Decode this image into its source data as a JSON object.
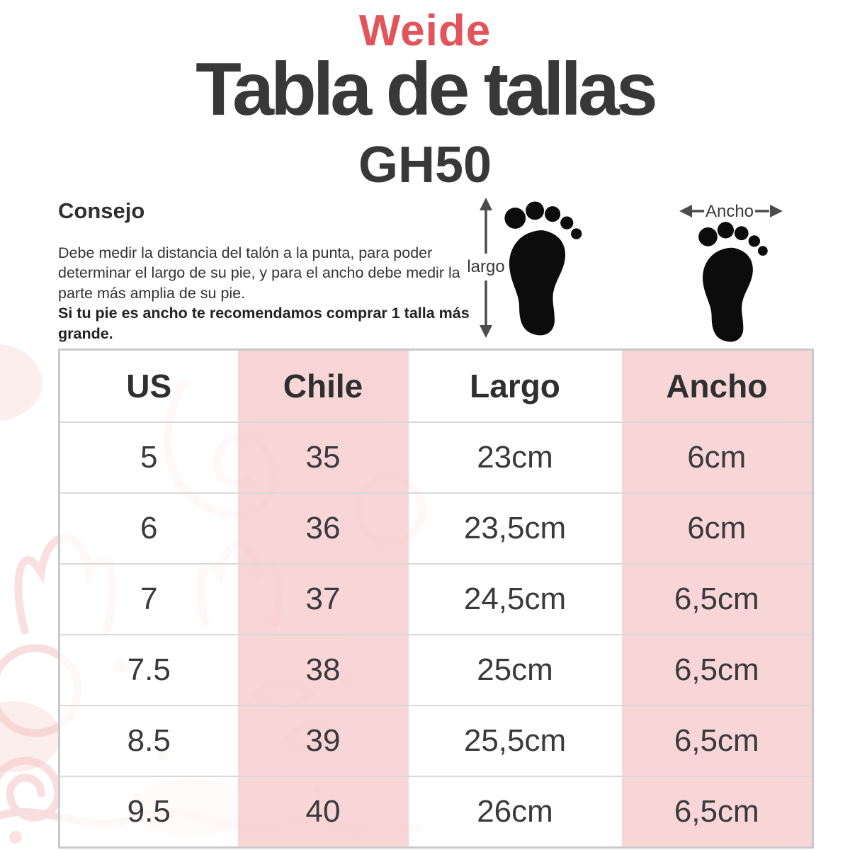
{
  "brand": {
    "logo_text": "Weide",
    "logo_color": "#e2535a"
  },
  "header": {
    "title": "Tabla de tallas",
    "model": "GH50"
  },
  "consejo": {
    "heading": "Consejo",
    "body": "Debe medir la distancia del talón a la punta, para poder determinar el largo de su pie, y para el ancho debe medir la parte más amplia de su pie.",
    "bold_note": "Si tu pie es ancho te recomendamos comprar 1 talla más grande."
  },
  "diagram": {
    "length_label": "largo",
    "width_label": "Ancho"
  },
  "size_table": {
    "columns": [
      "US",
      "Chile",
      "Largo",
      "Ancho"
    ],
    "rows": [
      [
        "5",
        "35",
        "23cm",
        "6cm"
      ],
      [
        "6",
        "36",
        "23,5cm",
        "6cm"
      ],
      [
        "7",
        "37",
        "24,5cm",
        "6,5cm"
      ],
      [
        "7.5",
        "38",
        "25cm",
        "6,5cm"
      ],
      [
        "8.5",
        "39",
        "25,5cm",
        "6,5cm"
      ],
      [
        "9.5",
        "40",
        "26cm",
        "6,5cm"
      ]
    ],
    "pink_columns": [
      1,
      3
    ],
    "colors": {
      "pink_cell": "#f8dadb",
      "outer_border": "#c9c9c9",
      "row_divider": "#d9d9d9",
      "text": "#3a3a3c",
      "ornament_pink": "#f5c9c9"
    }
  }
}
